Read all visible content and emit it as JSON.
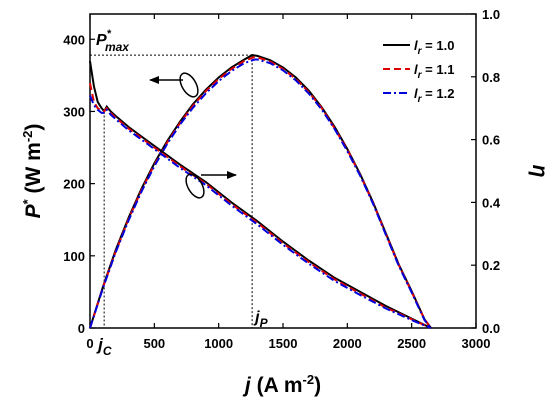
{
  "chart_data": {
    "type": "line",
    "x": {
      "ylabel_symbol": "j",
      "label_unit": " (A m",
      "label_exp": "-2",
      "label_close": ")",
      "ticks": [
        0,
        500,
        1000,
        1500,
        2000,
        2500,
        3000
      ],
      "lim": [
        0,
        3000
      ]
    },
    "y_left": {
      "symbol": "P",
      "symbol_sup": "*",
      "label_unit": " (W m",
      "label_exp": "-2",
      "label_close": ")",
      "ticks": [
        0,
        100,
        200,
        300,
        400
      ],
      "lim": [
        0,
        435
      ]
    },
    "y_right": {
      "label": "η",
      "ticks": [
        "0.0",
        "0.2",
        "0.4",
        "0.6",
        "0.8",
        "1.0"
      ],
      "tick_values": [
        0,
        0.2,
        0.4,
        0.6,
        0.8,
        1.0
      ],
      "lim": [
        0,
        1.0
      ]
    },
    "legend": {
      "placement": "top-right",
      "entries": [
        {
          "sym": "l",
          "sub": "r",
          "text": " = 1.0",
          "color": "#000000",
          "dash": "solid"
        },
        {
          "sym": "l",
          "sub": "r",
          "text": " = 1.1",
          "color": "#dd0000",
          "dash": "dash"
        },
        {
          "sym": "l",
          "sub": "r",
          "text": " = 1.2",
          "color": "#0000dd",
          "dash": "dashdot"
        }
      ]
    },
    "annotations": {
      "pmax": {
        "base": "P",
        "sup": "*",
        "sub": "max",
        "x": 1260,
        "y": 378
      },
      "jp": {
        "base": "j",
        "sub": "P",
        "x": 1260
      },
      "jc": {
        "base": "j",
        "sub": "C",
        "x": 110
      }
    },
    "series_power": [
      {
        "name_ref": 0,
        "x": [
          0,
          100,
          200,
          300,
          400,
          500,
          600,
          700,
          800,
          900,
          1000,
          1100,
          1200,
          1260,
          1300,
          1400,
          1500,
          1600,
          1700,
          1800,
          1900,
          2000,
          2100,
          2200,
          2300,
          2400,
          2500,
          2600,
          2650
        ],
        "y": [
          0,
          57,
          108,
          153,
          193,
          228,
          259,
          286,
          310,
          330,
          347,
          361,
          372,
          378,
          377,
          371,
          361,
          347,
          329,
          306,
          279,
          248,
          213,
          174,
          131,
          88,
          51,
          12,
          0
        ]
      },
      {
        "name_ref": 1,
        "x": [
          0,
          100,
          200,
          300,
          400,
          500,
          600,
          700,
          800,
          900,
          1000,
          1100,
          1200,
          1270,
          1300,
          1400,
          1500,
          1600,
          1700,
          1800,
          1900,
          2000,
          2100,
          2200,
          2300,
          2400,
          2500,
          2600,
          2650
        ],
        "y": [
          0,
          56,
          106,
          151,
          191,
          226,
          257,
          284,
          308,
          328,
          345,
          359,
          370,
          375,
          375,
          369,
          359,
          345,
          327,
          305,
          277,
          247,
          212,
          173,
          130,
          87,
          50,
          12,
          0
        ]
      },
      {
        "name_ref": 2,
        "x": [
          0,
          100,
          200,
          300,
          400,
          500,
          600,
          700,
          800,
          900,
          1000,
          1100,
          1200,
          1280,
          1300,
          1400,
          1500,
          1600,
          1700,
          1800,
          1900,
          2000,
          2100,
          2200,
          2300,
          2400,
          2500,
          2600,
          2650
        ],
        "y": [
          0,
          55,
          105,
          149,
          189,
          224,
          255,
          282,
          305,
          325,
          342,
          356,
          367,
          372,
          372,
          367,
          357,
          343,
          325,
          303,
          276,
          245,
          211,
          172,
          129,
          86,
          49,
          11,
          0
        ]
      }
    ],
    "series_efficiency": [
      {
        "name_ref": 0,
        "x": [
          0,
          30,
          60,
          90,
          110,
          130,
          160,
          200,
          300,
          400,
          500,
          700,
          900,
          1100,
          1300,
          1500,
          1700,
          1900,
          2100,
          2300,
          2500,
          2600,
          2650
        ],
        "y": [
          0.85,
          0.77,
          0.72,
          0.7,
          0.69,
          0.705,
          0.69,
          0.675,
          0.64,
          0.61,
          0.58,
          0.52,
          0.465,
          0.4,
          0.34,
          0.275,
          0.215,
          0.16,
          0.115,
          0.07,
          0.03,
          0.01,
          0.0
        ]
      },
      {
        "name_ref": 1,
        "x": [
          0,
          30,
          60,
          90,
          110,
          130,
          160,
          200,
          300,
          400,
          500,
          700,
          900,
          1100,
          1300,
          1500,
          1700,
          1900,
          2100,
          2300,
          2500,
          2600,
          2650
        ],
        "y": [
          0.78,
          0.72,
          0.7,
          0.69,
          0.69,
          0.7,
          0.685,
          0.67,
          0.635,
          0.605,
          0.575,
          0.515,
          0.46,
          0.395,
          0.335,
          0.27,
          0.21,
          0.155,
          0.11,
          0.065,
          0.028,
          0.009,
          0.0
        ]
      },
      {
        "name_ref": 2,
        "x": [
          0,
          30,
          60,
          90,
          110,
          130,
          160,
          200,
          300,
          400,
          500,
          700,
          900,
          1100,
          1300,
          1500,
          1700,
          1900,
          2100,
          2300,
          2500,
          2600,
          2650
        ],
        "y": [
          0.74,
          0.71,
          0.695,
          0.685,
          0.685,
          0.695,
          0.68,
          0.665,
          0.63,
          0.6,
          0.57,
          0.51,
          0.455,
          0.39,
          0.33,
          0.265,
          0.205,
          0.15,
          0.105,
          0.062,
          0.025,
          0.008,
          0.0
        ]
      }
    ]
  }
}
